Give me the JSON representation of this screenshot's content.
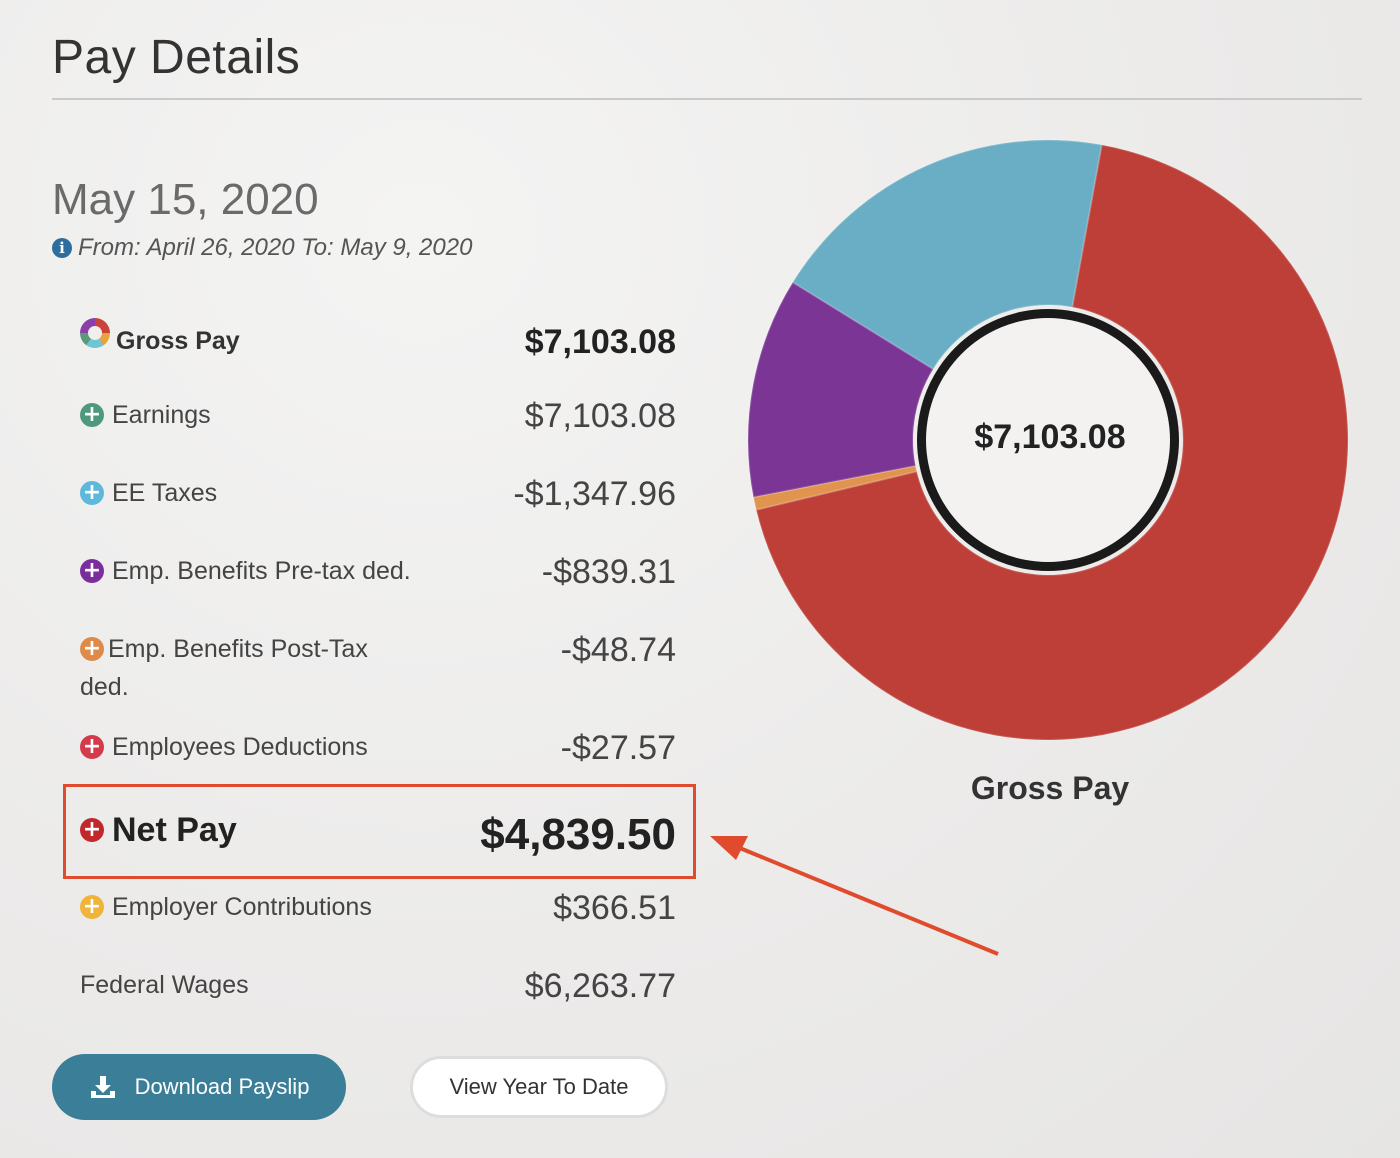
{
  "header": {
    "title": "Pay Details"
  },
  "pay_date": "May 15, 2020",
  "period": "From: April 26, 2020 To: May 9, 2020",
  "rows": [
    {
      "label": "Gross Pay",
      "value": "$7,103.08",
      "icon": "ring-chart-icon"
    },
    {
      "label": "Earnings",
      "value": "$7,103.08",
      "icon": "plus-circle-icon",
      "color": "#4c9a7b"
    },
    {
      "label": "EE Taxes",
      "value": "-$1,347.96",
      "icon": "plus-circle-icon",
      "color": "#5db8dc"
    },
    {
      "label": "Emp. Benefits Pre-tax ded.",
      "value": "-$839.31",
      "icon": "plus-circle-icon",
      "color": "#7a2e9e"
    },
    {
      "label": "Emp. Benefits Post-Tax ded.",
      "value": "-$48.74",
      "icon": "plus-circle-icon",
      "color": "#e08a4a"
    },
    {
      "label": "Employees Deductions",
      "value": "-$27.57",
      "icon": "plus-circle-icon",
      "color": "#d33b4a"
    },
    {
      "label": "Net Pay",
      "value": "$4,839.50",
      "icon": "plus-circle-icon",
      "color": "#c0282c"
    },
    {
      "label": "Employer Contributions",
      "value": "$366.51",
      "icon": "plus-circle-icon",
      "color": "#f0b43a"
    },
    {
      "label": "Federal Wages",
      "value": "$6,263.77"
    }
  ],
  "buttons": {
    "download": "Download Payslip",
    "ytd": "View Year To Date"
  },
  "chart_data": {
    "type": "pie",
    "title": "Gross Pay",
    "center_label": "$7,103.08",
    "categories": [
      "Net Pay",
      "Emp. Benefits Post-Tax ded.",
      "Emp. Benefits Pre-tax ded.",
      "EE Taxes"
    ],
    "values": [
      4839.5,
      48.74,
      839.31,
      1347.96
    ],
    "colors": [
      "#bd3f37",
      "#e0944e",
      "#7b3595",
      "#6aaec5"
    ]
  }
}
